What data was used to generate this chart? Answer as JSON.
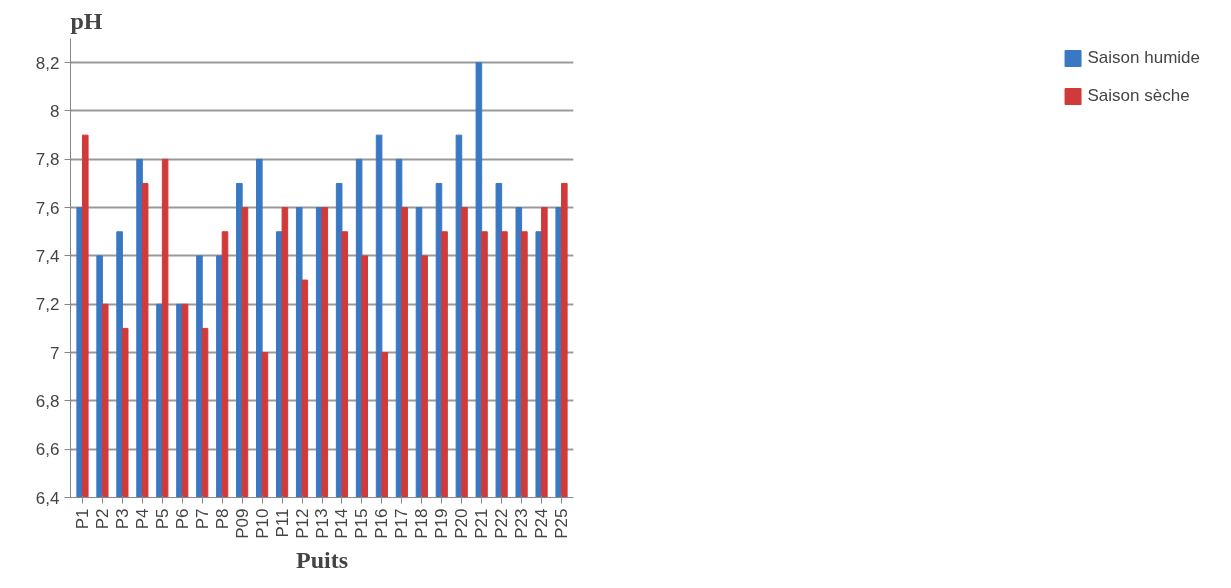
{
  "chart_data": {
    "type": "bar",
    "ylabel": "pH",
    "xlabel": "Puits",
    "categories": [
      "P1",
      "P2",
      "P3",
      "P4",
      "P5",
      "P6",
      "P7",
      "P8",
      "P09",
      "P10",
      "P11",
      "P12",
      "P13",
      "P14",
      "P15",
      "P16",
      "P17",
      "P18",
      "P19",
      "P20",
      "P21",
      "P22",
      "P23",
      "P24",
      "P25"
    ],
    "series": [
      {
        "name": "Saison humide",
        "color": "#3a78c4",
        "values": [
          7.6,
          7.4,
          7.5,
          7.8,
          7.2,
          7.2,
          7.4,
          7.4,
          7.7,
          7.8,
          7.5,
          7.6,
          7.6,
          7.7,
          7.8,
          7.9,
          7.8,
          7.6,
          7.7,
          7.9,
          8.2,
          7.7,
          7.6,
          7.5,
          7.6
        ]
      },
      {
        "name": "Saison sèche",
        "color": "#d13a3a",
        "values": [
          7.9,
          7.2,
          7.1,
          7.7,
          7.8,
          7.2,
          7.1,
          7.5,
          7.6,
          7.0,
          7.6,
          7.3,
          7.6,
          7.5,
          7.4,
          7.0,
          7.6,
          7.4,
          7.5,
          7.6,
          7.5,
          7.5,
          7.5,
          7.6,
          7.7
        ]
      }
    ],
    "ylim": [
      6.4,
      8.3
    ],
    "yticks": [
      {
        "value": 6.4,
        "label": "6,4"
      },
      {
        "value": 6.6,
        "label": "6,6"
      },
      {
        "value": 6.8,
        "label": "6,8"
      },
      7,
      {
        "value": 7.2,
        "label": "7,2"
      },
      {
        "value": 7.4,
        "label": "7,4"
      },
      {
        "value": 7.6,
        "label": "7,6"
      },
      {
        "value": 7.8,
        "label": "7,8"
      },
      8,
      {
        "value": 8.2,
        "label": "8,2"
      }
    ],
    "grid": "y",
    "legend": "right"
  }
}
